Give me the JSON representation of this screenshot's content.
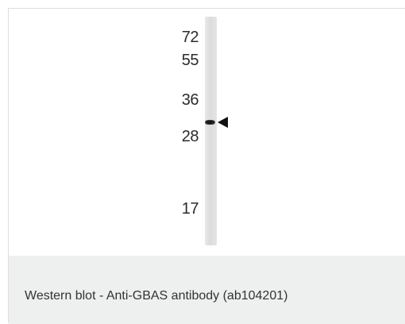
{
  "figure": {
    "markers": [
      {
        "label": "72"
      },
      {
        "label": "55"
      },
      {
        "label": "36"
      },
      {
        "label": "28"
      },
      {
        "label": "17"
      }
    ],
    "caption": "Western blot - Anti-GBAS antibody (ab104201)"
  },
  "colors": {
    "caption_background": "#eeefef",
    "lane": "#dcdcdc",
    "band": "#111111"
  }
}
